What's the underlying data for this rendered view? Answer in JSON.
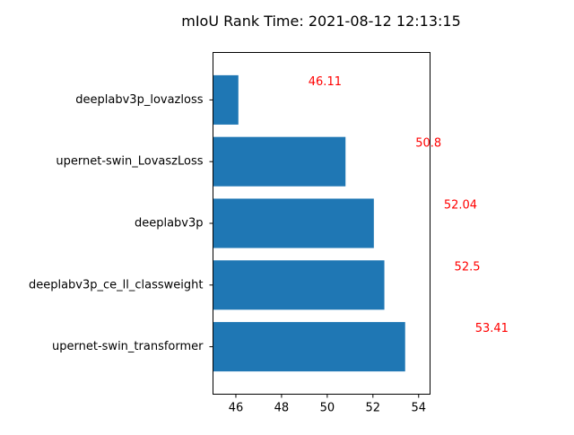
{
  "chart_data": {
    "type": "bar",
    "orientation": "horizontal",
    "title": "mIoU Rank Time: 2021-08-12 12:13:15",
    "xlabel": "",
    "ylabel": "",
    "xlim": [
      45.0,
      54.5
    ],
    "xticks": [
      46,
      48,
      50,
      52,
      54
    ],
    "categories": [
      "deeplabv3p_lovazloss",
      "upernet-swin_LovaszLoss",
      "deeplabv3p",
      "deeplabv3p_ce_ll_classweight",
      "upernet-swin_transformer"
    ],
    "values": [
      46.11,
      50.8,
      52.04,
      52.5,
      53.41
    ],
    "value_labels": [
      "46.11",
      "50.8",
      "52.04",
      "52.5",
      "53.41"
    ],
    "bar_color": "#1f77b4",
    "label_color": "#ff0000",
    "grid": false,
    "legend": "none"
  }
}
